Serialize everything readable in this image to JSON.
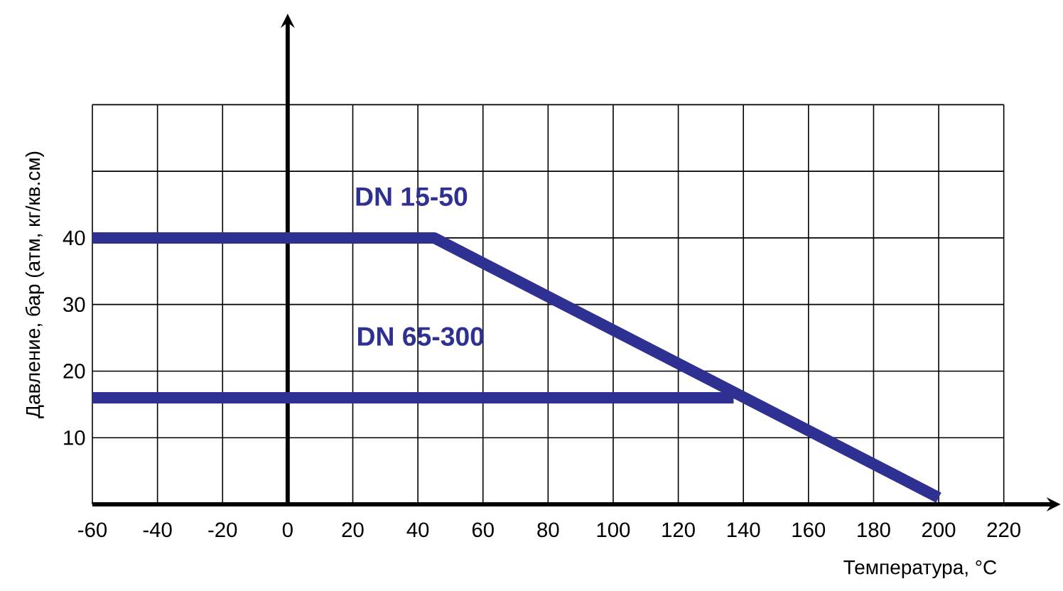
{
  "chart_data": {
    "type": "line",
    "xlabel": "Температура, °C",
    "ylabel": "Давление, бар (атм, кг/кв.см)",
    "xlim": [
      -60,
      220
    ],
    "ylim": [
      0,
      60
    ],
    "xticks": [
      -60,
      -40,
      -20,
      0,
      20,
      40,
      60,
      80,
      100,
      120,
      140,
      160,
      180,
      200,
      220
    ],
    "yticks": [
      10,
      20,
      30,
      40,
      {
        "value": 50,
        "label": null
      },
      {
        "value": 60,
        "label": null
      }
    ],
    "grid": true,
    "marker": "none",
    "line_style": "solid",
    "series": [
      {
        "name": "DN 15-50",
        "color": "#2e3192",
        "x": [
          -60,
          45,
          200
        ],
        "values": [
          40,
          40,
          1
        ]
      },
      {
        "name": "DN 65-300",
        "color": "#2e3192",
        "x": [
          -60,
          137
        ],
        "values": [
          16,
          16
        ]
      }
    ]
  }
}
